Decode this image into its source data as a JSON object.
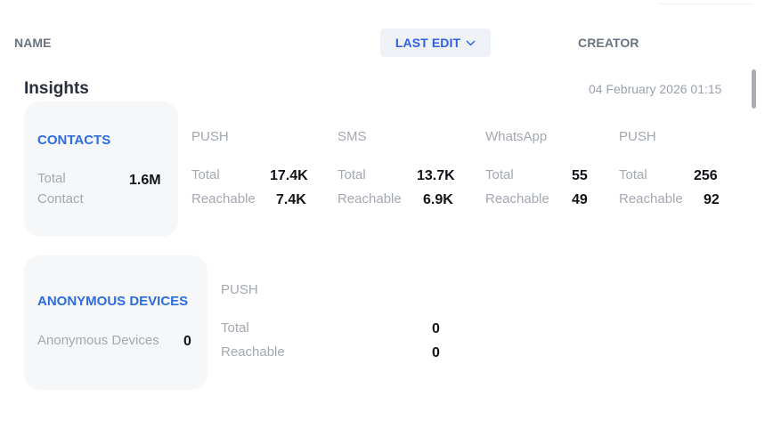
{
  "header": {
    "name_label": "NAME",
    "last_edit_label": "LAST EDIT",
    "creator_label": "CREATOR"
  },
  "insights": {
    "title": "Insights",
    "date": "04 February 2026 01:15",
    "contacts": {
      "title": "CONTACTS",
      "total_label_line1": "Total",
      "total_label_line2": "Contact",
      "total_value": "1.6M"
    },
    "channels": [
      {
        "name": "PUSH",
        "total_label": "Total",
        "total": "17.4K",
        "reachable_label": "Reachable",
        "reachable": "7.4K"
      },
      {
        "name": "SMS",
        "total_label": "Total",
        "total": "13.7K",
        "reachable_label": "Reachable",
        "reachable": "6.9K"
      },
      {
        "name": "WhatsApp",
        "total_label": "Total",
        "total": "55",
        "reachable_label": "Reachable",
        "reachable": "49"
      },
      {
        "name": "PUSH",
        "total_label": "Total",
        "total": "256",
        "reachable_label": "Reachable",
        "reachable": "92"
      }
    ],
    "anonymous": {
      "title": "ANONYMOUS DEVICES",
      "label": "Anonymous Devices",
      "value": "0",
      "channel": {
        "name": "PUSH",
        "total_label": "Total",
        "total": "0",
        "reachable_label": "Reachable",
        "reachable": "0"
      }
    }
  },
  "icons": {
    "sort": "chevron-down-icon"
  },
  "colors": {
    "accent": "#2d6cdf",
    "muted": "#a3a8b1",
    "card_bg": "#f6f7f9"
  }
}
